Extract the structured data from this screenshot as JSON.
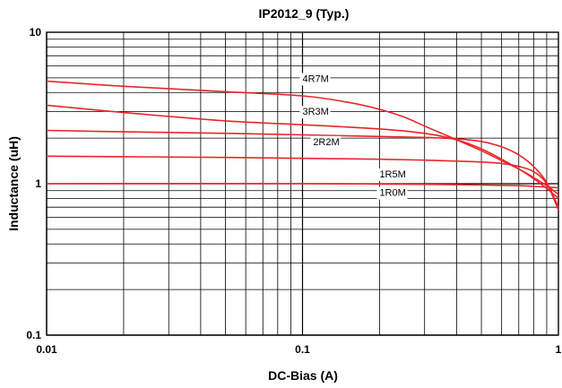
{
  "chart_data": {
    "type": "line",
    "title": "IP2012_9 (Typ.)",
    "xlabel": "DC-Bias (A)",
    "ylabel": "Inductance (uH)",
    "x_scale": "log",
    "y_scale": "log",
    "xlim": [
      0.01,
      1
    ],
    "ylim": [
      0.1,
      10
    ],
    "x_ticks": [
      {
        "value": 0.01,
        "label": "0.01"
      },
      {
        "value": 0.1,
        "label": "0.1"
      },
      {
        "value": 1,
        "label": "1"
      }
    ],
    "y_ticks": [
      {
        "value": 0.1,
        "label": "0.1"
      },
      {
        "value": 1,
        "label": "1"
      },
      {
        "value": 10,
        "label": "10"
      }
    ],
    "grid": true,
    "line_color": "#e8262a",
    "series": [
      {
        "name": "4R7M",
        "x": [
          0.01,
          0.02,
          0.05,
          0.1,
          0.15,
          0.2,
          0.25,
          0.3,
          0.35,
          0.4,
          0.5,
          0.6,
          0.7,
          0.8,
          0.9,
          1.0
        ],
        "y": [
          4.75,
          4.4,
          4.05,
          3.8,
          3.45,
          3.1,
          2.75,
          2.4,
          2.15,
          1.95,
          1.65,
          1.42,
          1.25,
          1.1,
          0.97,
          0.85
        ],
        "label": {
          "x": 0.1,
          "y": 4.7
        }
      },
      {
        "name": "3R3M",
        "x": [
          0.01,
          0.02,
          0.05,
          0.1,
          0.2,
          0.3,
          0.4,
          0.5,
          0.6,
          0.7,
          0.8,
          0.9,
          1.0
        ],
        "y": [
          3.3,
          2.95,
          2.6,
          2.45,
          2.3,
          2.15,
          1.95,
          1.7,
          1.45,
          1.25,
          1.08,
          0.93,
          0.8
        ],
        "label": {
          "x": 0.1,
          "y": 2.85
        }
      },
      {
        "name": "2R2M",
        "x": [
          0.01,
          0.02,
          0.05,
          0.1,
          0.2,
          0.3,
          0.4,
          0.5,
          0.6,
          0.7,
          0.8,
          0.9,
          1.0
        ],
        "y": [
          2.25,
          2.2,
          2.15,
          2.1,
          2.05,
          2.02,
          1.98,
          1.9,
          1.75,
          1.55,
          1.3,
          1.02,
          0.7
        ],
        "label": {
          "x": 0.11,
          "y": 1.8
        }
      },
      {
        "name": "1R5M",
        "x": [
          0.01,
          0.05,
          0.1,
          0.2,
          0.3,
          0.4,
          0.5,
          0.6,
          0.7,
          0.8,
          0.9,
          1.0
        ],
        "y": [
          1.52,
          1.49,
          1.47,
          1.45,
          1.43,
          1.41,
          1.39,
          1.36,
          1.3,
          1.2,
          1.0,
          0.67
        ],
        "label": {
          "x": 0.2,
          "y": 1.1
        }
      },
      {
        "name": "1R0M",
        "x": [
          0.01,
          0.1,
          0.2,
          0.3,
          0.4,
          0.5,
          0.6,
          0.7,
          0.8,
          0.9,
          1.0
        ],
        "y": [
          1.0,
          1.0,
          0.995,
          0.99,
          0.985,
          0.98,
          0.975,
          0.97,
          0.96,
          0.95,
          0.94
        ],
        "label": {
          "x": 0.2,
          "y": 0.83
        }
      }
    ]
  }
}
